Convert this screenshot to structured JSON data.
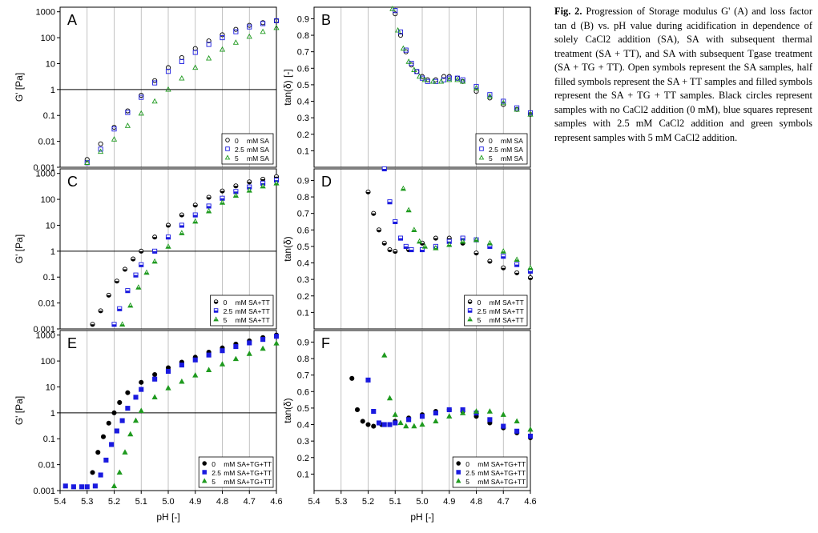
{
  "caption": {
    "label": "Fig. 2.",
    "text": "Progression of Storage modulus G' (A) and loss factor tan d (B) vs. pH value during acidification in dependence of solely CaCl2 addition (SA), SA with subsequent thermal treatment (SA + TT), and SA with subsequent Tgase treatment (SA + TG + TT). Open symbols represent the SA samples, half filled symbols represent the SA + TT samples and filled symbols represent the SA + TG + TT samples. Black circles represent samples with no CaCl2 addition (0 mM), blue squares represent samples with 2.5 mM CaCl2 addition and green symbols represent samples with 5 mM CaCl2 addition."
  },
  "colors": {
    "black": "#000000",
    "blue": "#1a1adf",
    "green": "#1f9a1f",
    "grid": "#b3b3b3"
  },
  "chart_data": [
    {
      "panel": "A",
      "type": "scatter",
      "ylabel": "G' [Pa]",
      "xlabel": "",
      "xlim": [
        5.4,
        4.6
      ],
      "yscale": "log",
      "ylim": [
        0.001,
        1500
      ],
      "reference_line_y": 1,
      "yticks": [
        "0.001",
        "0.01",
        "0.1",
        "1",
        "10",
        "100",
        "1000"
      ],
      "legend": [
        {
          "conc": "0",
          "text": "mM SA",
          "marker": "circle-open"
        },
        {
          "conc": "2.5",
          "text": "mM SA",
          "marker": "square-open"
        },
        {
          "conc": "5",
          "text": "mM SA",
          "marker": "triangle-open"
        }
      ],
      "series": [
        {
          "conc": "0",
          "color": "black",
          "marker": "circle-open",
          "x": [
            5.3,
            5.25,
            5.2,
            5.15,
            5.1,
            5.05,
            5.0,
            4.95,
            4.9,
            4.85,
            4.8,
            4.75,
            4.7,
            4.65,
            4.6
          ],
          "y": [
            0.002,
            0.008,
            0.035,
            0.15,
            0.6,
            2.2,
            7,
            17,
            38,
            75,
            130,
            210,
            300,
            380,
            450
          ]
        },
        {
          "conc": "2.5",
          "color": "blue",
          "marker": "square-open",
          "x": [
            5.3,
            5.25,
            5.2,
            5.15,
            5.1,
            5.05,
            5.0,
            4.95,
            4.9,
            4.85,
            4.8,
            4.75,
            4.7,
            4.65,
            4.6
          ],
          "y": [
            0.0015,
            0.005,
            0.03,
            0.13,
            0.5,
            1.8,
            5,
            12,
            27,
            55,
            100,
            170,
            260,
            350,
            450
          ]
        },
        {
          "conc": "5",
          "color": "green",
          "marker": "triangle-open",
          "x": [
            5.35,
            5.3,
            5.25,
            5.2,
            5.15,
            5.1,
            5.05,
            5.0,
            4.95,
            4.9,
            4.85,
            4.8,
            4.75,
            4.7,
            4.65,
            4.6
          ],
          "y": [
            0.0008,
            0.0015,
            0.004,
            0.012,
            0.04,
            0.12,
            0.35,
            1.0,
            2.7,
            7,
            16,
            35,
            65,
            110,
            170,
            240
          ]
        }
      ]
    },
    {
      "panel": "B",
      "type": "scatter",
      "ylabel": "tan(δ) [-]",
      "xlabel": "",
      "xlim": [
        5.4,
        4.6
      ],
      "ylim": [
        0,
        0.97
      ],
      "yticks": [
        "0.1",
        "0.2",
        "0.3",
        "0.4",
        "0.5",
        "0.6",
        "0.7",
        "0.8",
        "0.9"
      ],
      "legend": [
        {
          "conc": "0",
          "text": "mM SA",
          "marker": "circle-open"
        },
        {
          "conc": "2.5",
          "text": "mM SA",
          "marker": "square-open"
        },
        {
          "conc": "5",
          "text": "mM SA",
          "marker": "triangle-open"
        }
      ],
      "series": [
        {
          "conc": "0",
          "color": "black",
          "marker": "circle-open",
          "x": [
            5.1,
            5.08,
            5.06,
            5.04,
            5.02,
            5.0,
            4.98,
            4.95,
            4.92,
            4.9,
            4.87,
            4.85,
            4.8,
            4.75,
            4.7,
            4.65,
            4.6
          ],
          "y": [
            0.93,
            0.8,
            0.7,
            0.62,
            0.58,
            0.55,
            0.53,
            0.53,
            0.55,
            0.55,
            0.54,
            0.52,
            0.46,
            0.42,
            0.38,
            0.35,
            0.32
          ]
        },
        {
          "conc": "2.5",
          "color": "blue",
          "marker": "square-open",
          "x": [
            5.1,
            5.08,
            5.06,
            5.04,
            5.02,
            5.0,
            4.98,
            4.95,
            4.92,
            4.9,
            4.87,
            4.85,
            4.8,
            4.75,
            4.7,
            4.65,
            4.6
          ],
          "y": [
            0.95,
            0.82,
            0.71,
            0.63,
            0.58,
            0.54,
            0.52,
            0.52,
            0.53,
            0.54,
            0.54,
            0.53,
            0.49,
            0.44,
            0.4,
            0.36,
            0.33
          ]
        },
        {
          "conc": "5",
          "color": "green",
          "marker": "triangle-open",
          "x": [
            5.11,
            5.09,
            5.07,
            5.05,
            5.03,
            5.01,
            4.99,
            4.96,
            4.93,
            4.9,
            4.87,
            4.85,
            4.8,
            4.75,
            4.7,
            4.65,
            4.6
          ],
          "y": [
            0.96,
            0.83,
            0.72,
            0.64,
            0.59,
            0.55,
            0.53,
            0.52,
            0.52,
            0.53,
            0.53,
            0.52,
            0.48,
            0.43,
            0.39,
            0.35,
            0.32
          ]
        }
      ]
    },
    {
      "panel": "C",
      "type": "scatter",
      "ylabel": "G' [Pa]",
      "xlabel": "",
      "xlim": [
        5.4,
        4.6
      ],
      "yscale": "log",
      "ylim": [
        0.001,
        1500
      ],
      "reference_line_y": 1,
      "yticks": [
        "0.001",
        "0.01",
        "0.1",
        "1",
        "10",
        "100",
        "1000"
      ],
      "legend": [
        {
          "conc": "0",
          "text": "mM SA+TT",
          "marker": "circle-half"
        },
        {
          "conc": "2.5",
          "text": "mM SA+TT",
          "marker": "square-half"
        },
        {
          "conc": "5",
          "text": "mM SA+TT",
          "marker": "triangle-half"
        }
      ],
      "series": [
        {
          "conc": "0",
          "color": "black",
          "marker": "circle-half",
          "x": [
            5.28,
            5.25,
            5.22,
            5.19,
            5.16,
            5.13,
            5.1,
            5.05,
            5.0,
            4.95,
            4.9,
            4.85,
            4.8,
            4.75,
            4.7,
            4.65,
            4.6
          ],
          "y": [
            0.0015,
            0.005,
            0.02,
            0.07,
            0.2,
            0.5,
            1.0,
            3.5,
            10,
            25,
            60,
            120,
            210,
            330,
            470,
            600,
            750
          ]
        },
        {
          "conc": "2.5",
          "color": "blue",
          "marker": "square-half",
          "x": [
            5.2,
            5.18,
            5.15,
            5.12,
            5.1,
            5.05,
            5.0,
            4.95,
            4.9,
            4.85,
            4.8,
            4.75,
            4.7,
            4.65,
            4.6
          ],
          "y": [
            0.0015,
            0.006,
            0.03,
            0.12,
            0.3,
            1.0,
            3.5,
            10,
            25,
            55,
            110,
            200,
            300,
            420,
            550
          ]
        },
        {
          "conc": "5",
          "color": "green",
          "marker": "triangle-half",
          "x": [
            5.17,
            5.14,
            5.11,
            5.08,
            5.05,
            5.0,
            4.95,
            4.9,
            4.85,
            4.8,
            4.75,
            4.7,
            4.65,
            4.6
          ],
          "y": [
            0.0015,
            0.008,
            0.04,
            0.15,
            0.4,
            1.5,
            5,
            14,
            35,
            75,
            140,
            220,
            320,
            420
          ]
        }
      ]
    },
    {
      "panel": "D",
      "type": "scatter",
      "ylabel": "tan(δ)",
      "xlabel": "",
      "xlim": [
        5.4,
        4.6
      ],
      "ylim": [
        0,
        0.97
      ],
      "yticks": [
        "0.1",
        "0.2",
        "0.3",
        "0.4",
        "0.5",
        "0.6",
        "0.7",
        "0.8",
        "0.9"
      ],
      "legend": [
        {
          "conc": "0",
          "text": "mM SA+TT",
          "marker": "circle-half"
        },
        {
          "conc": "2.5",
          "text": "mM SA+TT",
          "marker": "square-half"
        },
        {
          "conc": "5",
          "text": "mM SA+TT",
          "marker": "triangle-half"
        }
      ],
      "series": [
        {
          "conc": "0",
          "color": "black",
          "marker": "circle-half",
          "x": [
            5.2,
            5.18,
            5.16,
            5.14,
            5.12,
            5.1,
            5.05,
            5.0,
            4.95,
            4.9,
            4.85,
            4.8,
            4.75,
            4.7,
            4.65,
            4.6
          ],
          "y": [
            0.83,
            0.7,
            0.6,
            0.52,
            0.48,
            0.47,
            0.48,
            0.52,
            0.55,
            0.55,
            0.52,
            0.46,
            0.41,
            0.37,
            0.34,
            0.31
          ]
        },
        {
          "conc": "2.5",
          "color": "blue",
          "marker": "square-half",
          "x": [
            5.14,
            5.12,
            5.1,
            5.08,
            5.06,
            5.04,
            5.0,
            4.95,
            4.9,
            4.85,
            4.8,
            4.75,
            4.7,
            4.65,
            4.6
          ],
          "y": [
            0.97,
            0.77,
            0.65,
            0.55,
            0.5,
            0.48,
            0.48,
            0.5,
            0.53,
            0.55,
            0.54,
            0.5,
            0.44,
            0.39,
            0.35
          ]
        },
        {
          "conc": "5",
          "color": "green",
          "marker": "triangle-half",
          "x": [
            5.09,
            5.07,
            5.05,
            5.03,
            5.01,
            4.99,
            4.95,
            4.9,
            4.85,
            4.8,
            4.75,
            4.7,
            4.65,
            4.6
          ],
          "y": [
            0.98,
            0.85,
            0.72,
            0.6,
            0.53,
            0.5,
            0.49,
            0.51,
            0.53,
            0.54,
            0.52,
            0.47,
            0.42,
            0.37
          ]
        }
      ]
    },
    {
      "panel": "E",
      "type": "scatter",
      "ylabel": "G' [Pa]",
      "xlabel": "pH [-]",
      "xlim": [
        5.4,
        4.6
      ],
      "yscale": "log",
      "ylim": [
        0.001,
        1500
      ],
      "reference_line_y": 1,
      "yticks": [
        "0.001",
        "0.01",
        "0.1",
        "1",
        "10",
        "100",
        "1000"
      ],
      "xticks": [
        "5.4",
        "5.3",
        "5.2",
        "5.1",
        "5.0",
        "4.9",
        "4.8",
        "4.7",
        "4.6"
      ],
      "legend": [
        {
          "conc": "0",
          "text": "mM SA+TG+TT",
          "marker": "circle-filled"
        },
        {
          "conc": "2.5",
          "text": "mM SA+TG+TT",
          "marker": "square-filled"
        },
        {
          "conc": "5",
          "text": "mM SA+TG+TT",
          "marker": "triangle-filled"
        }
      ],
      "series": [
        {
          "conc": "0",
          "color": "black",
          "marker": "circle-filled",
          "x": [
            5.28,
            5.26,
            5.24,
            5.22,
            5.2,
            5.18,
            5.15,
            5.1,
            5.05,
            5.0,
            4.95,
            4.9,
            4.85,
            4.8,
            4.75,
            4.7,
            4.65,
            4.6
          ],
          "y": [
            0.005,
            0.03,
            0.12,
            0.4,
            1.0,
            2.5,
            6,
            15,
            30,
            55,
            90,
            140,
            220,
            320,
            450,
            600,
            800,
            1000
          ]
        },
        {
          "conc": "2.5",
          "color": "blue",
          "marker": "square-filled",
          "x": [
            5.38,
            5.35,
            5.32,
            5.3,
            5.27,
            5.25,
            5.23,
            5.21,
            5.19,
            5.17,
            5.15,
            5.12,
            5.1,
            5.05,
            5.0,
            4.95,
            4.9,
            4.85,
            4.8,
            4.75,
            4.7,
            4.65,
            4.6
          ],
          "y": [
            0.0015,
            0.0014,
            0.0014,
            0.0014,
            0.0015,
            0.004,
            0.015,
            0.06,
            0.2,
            0.5,
            1.5,
            4,
            8,
            20,
            40,
            70,
            110,
            170,
            250,
            360,
            500,
            680,
            900
          ]
        },
        {
          "conc": "5",
          "color": "green",
          "marker": "triangle-filled",
          "x": [
            5.2,
            5.18,
            5.16,
            5.14,
            5.12,
            5.1,
            5.05,
            5.0,
            4.95,
            4.9,
            4.85,
            4.8,
            4.75,
            4.7,
            4.65,
            4.6
          ],
          "y": [
            0.0015,
            0.005,
            0.03,
            0.15,
            0.5,
            1.2,
            4,
            9,
            16,
            28,
            45,
            75,
            120,
            190,
            300,
            480
          ]
        }
      ]
    },
    {
      "panel": "F",
      "type": "scatter",
      "ylabel": "tan(δ)",
      "xlabel": "pH [-]",
      "xlim": [
        5.4,
        4.6
      ],
      "ylim": [
        0,
        0.97
      ],
      "yticks": [
        "0.1",
        "0.2",
        "0.3",
        "0.4",
        "0.5",
        "0.6",
        "0.7",
        "0.8",
        "0.9"
      ],
      "xticks": [
        "5.4",
        "5.3",
        "5.2",
        "5.1",
        "5.0",
        "4.9",
        "4.8",
        "4.7",
        "4.6"
      ],
      "legend": [
        {
          "conc": "0",
          "text": "mM SA+TG+TT",
          "marker": "circle-filled"
        },
        {
          "conc": "2.5",
          "text": "mM SA+TG+TT",
          "marker": "square-filled"
        },
        {
          "conc": "5",
          "text": "mM SA+TG+TT",
          "marker": "triangle-filled"
        }
      ],
      "series": [
        {
          "conc": "0",
          "color": "black",
          "marker": "circle-filled",
          "x": [
            5.26,
            5.24,
            5.22,
            5.2,
            5.18,
            5.15,
            5.1,
            5.05,
            5.0,
            4.95,
            4.9,
            4.85,
            4.8,
            4.75,
            4.7,
            4.65,
            4.6
          ],
          "y": [
            0.68,
            0.49,
            0.42,
            0.4,
            0.39,
            0.4,
            0.42,
            0.44,
            0.46,
            0.48,
            0.49,
            0.48,
            0.45,
            0.41,
            0.38,
            0.35,
            0.32
          ]
        },
        {
          "conc": "2.5",
          "color": "blue",
          "marker": "square-filled",
          "x": [
            5.2,
            5.18,
            5.16,
            5.14,
            5.12,
            5.1,
            5.05,
            5.0,
            4.95,
            4.9,
            4.85,
            4.8,
            4.75,
            4.7,
            4.65,
            4.6
          ],
          "y": [
            0.67,
            0.48,
            0.41,
            0.4,
            0.4,
            0.41,
            0.43,
            0.45,
            0.47,
            0.49,
            0.49,
            0.47,
            0.43,
            0.39,
            0.36,
            0.33
          ]
        },
        {
          "conc": "5",
          "color": "green",
          "marker": "triangle-filled",
          "x": [
            5.14,
            5.12,
            5.1,
            5.08,
            5.06,
            5.03,
            5.0,
            4.95,
            4.9,
            4.85,
            4.8,
            4.75,
            4.7,
            4.65,
            4.6
          ],
          "y": [
            0.82,
            0.56,
            0.46,
            0.41,
            0.39,
            0.39,
            0.4,
            0.42,
            0.45,
            0.47,
            0.48,
            0.48,
            0.46,
            0.42,
            0.37
          ]
        }
      ]
    }
  ]
}
